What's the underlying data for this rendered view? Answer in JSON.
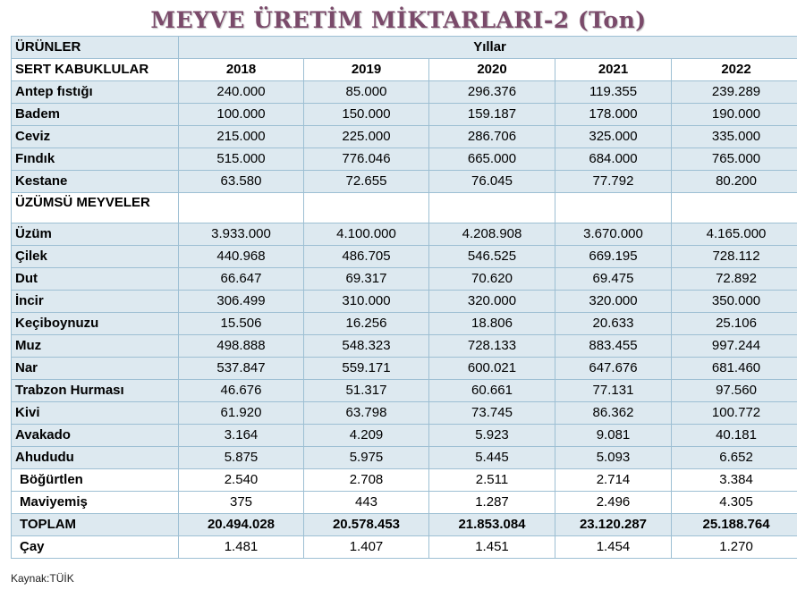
{
  "title": "MEYVE ÜRETİM MİKTARLARI-2 (Ton)",
  "header": {
    "products_label": "ÜRÜNLER",
    "years_label": "Yıllar",
    "years": [
      "2018",
      "2019",
      "2020",
      "2021",
      "2022"
    ]
  },
  "sections": {
    "sert_kabuklular": "SERT KABUKLULAR",
    "uzumsu_meyveler": "ÜZÜMSÜ MEYVELER"
  },
  "rows": [
    {
      "name": "Antep fıstığı",
      "values": [
        "240.000",
        "85.000",
        "296.376",
        "119.355",
        "239.289"
      ]
    },
    {
      "name": "Badem",
      "values": [
        "100.000",
        "150.000",
        "159.187",
        "178.000",
        "190.000"
      ]
    },
    {
      "name": "Ceviz",
      "values": [
        "215.000",
        "225.000",
        "286.706",
        "325.000",
        "335.000"
      ]
    },
    {
      "name": "Fındık",
      "values": [
        "515.000",
        "776.046",
        "665.000",
        "684.000",
        "765.000"
      ]
    },
    {
      "name": "Kestane",
      "values": [
        "63.580",
        "72.655",
        "76.045",
        "77.792",
        "80.200"
      ]
    },
    {
      "name": "Üzüm",
      "values": [
        "3.933.000",
        "4.100.000",
        "4.208.908",
        "3.670.000",
        "4.165.000"
      ]
    },
    {
      "name": "Çilek",
      "values": [
        "440.968",
        "486.705",
        "546.525",
        "669.195",
        "728.112"
      ]
    },
    {
      "name": "Dut",
      "values": [
        "66.647",
        "69.317",
        "70.620",
        "69.475",
        "72.892"
      ]
    },
    {
      "name": "İncir",
      "values": [
        "306.499",
        "310.000",
        "320.000",
        "320.000",
        "350.000"
      ]
    },
    {
      "name": "Keçiboynuzu",
      "values": [
        "15.506",
        "16.256",
        "18.806",
        "20.633",
        "25.106"
      ]
    },
    {
      "name": "Muz",
      "values": [
        "498.888",
        "548.323",
        "728.133",
        "883.455",
        "997.244"
      ]
    },
    {
      "name": "Nar",
      "values": [
        "537.847",
        "559.171",
        "600.021",
        "647.676",
        "681.460"
      ]
    },
    {
      "name": "Trabzon Hurması",
      "values": [
        "46.676",
        "51.317",
        "60.661",
        "77.131",
        "97.560"
      ]
    },
    {
      "name": "Kivi",
      "values": [
        "61.920",
        "63.798",
        "73.745",
        "86.362",
        "100.772"
      ]
    },
    {
      "name": "Avakado",
      "values": [
        "3.164",
        "4.209",
        "5.923",
        "9.081",
        "40.181"
      ]
    },
    {
      "name": "Ahududu",
      "values": [
        "5.875",
        "5.975",
        "5.445",
        "5.093",
        "6.652"
      ]
    },
    {
      "name": "Böğürtlen",
      "values": [
        "2.540",
        "2.708",
        "2.511",
        "2.714",
        "3.384"
      ]
    },
    {
      "name": "Maviyemiş",
      "values": [
        "375",
        "443",
        "1.287",
        "2.496",
        "4.305"
      ]
    }
  ],
  "total": {
    "name": "TOPLAM",
    "values": [
      "20.494.028",
      "20.578.453",
      "21.853.084",
      "23.120.287",
      "25.188.764"
    ]
  },
  "cay": {
    "name": "Çay",
    "values": [
      "1.481",
      "1.407",
      "1.451",
      "1.454",
      "1.270"
    ]
  },
  "source": "Kaynak:TÜİK",
  "colors": {
    "title": "#7a4a6a",
    "shade": "#dde9f0",
    "border": "#9dbfd3"
  }
}
